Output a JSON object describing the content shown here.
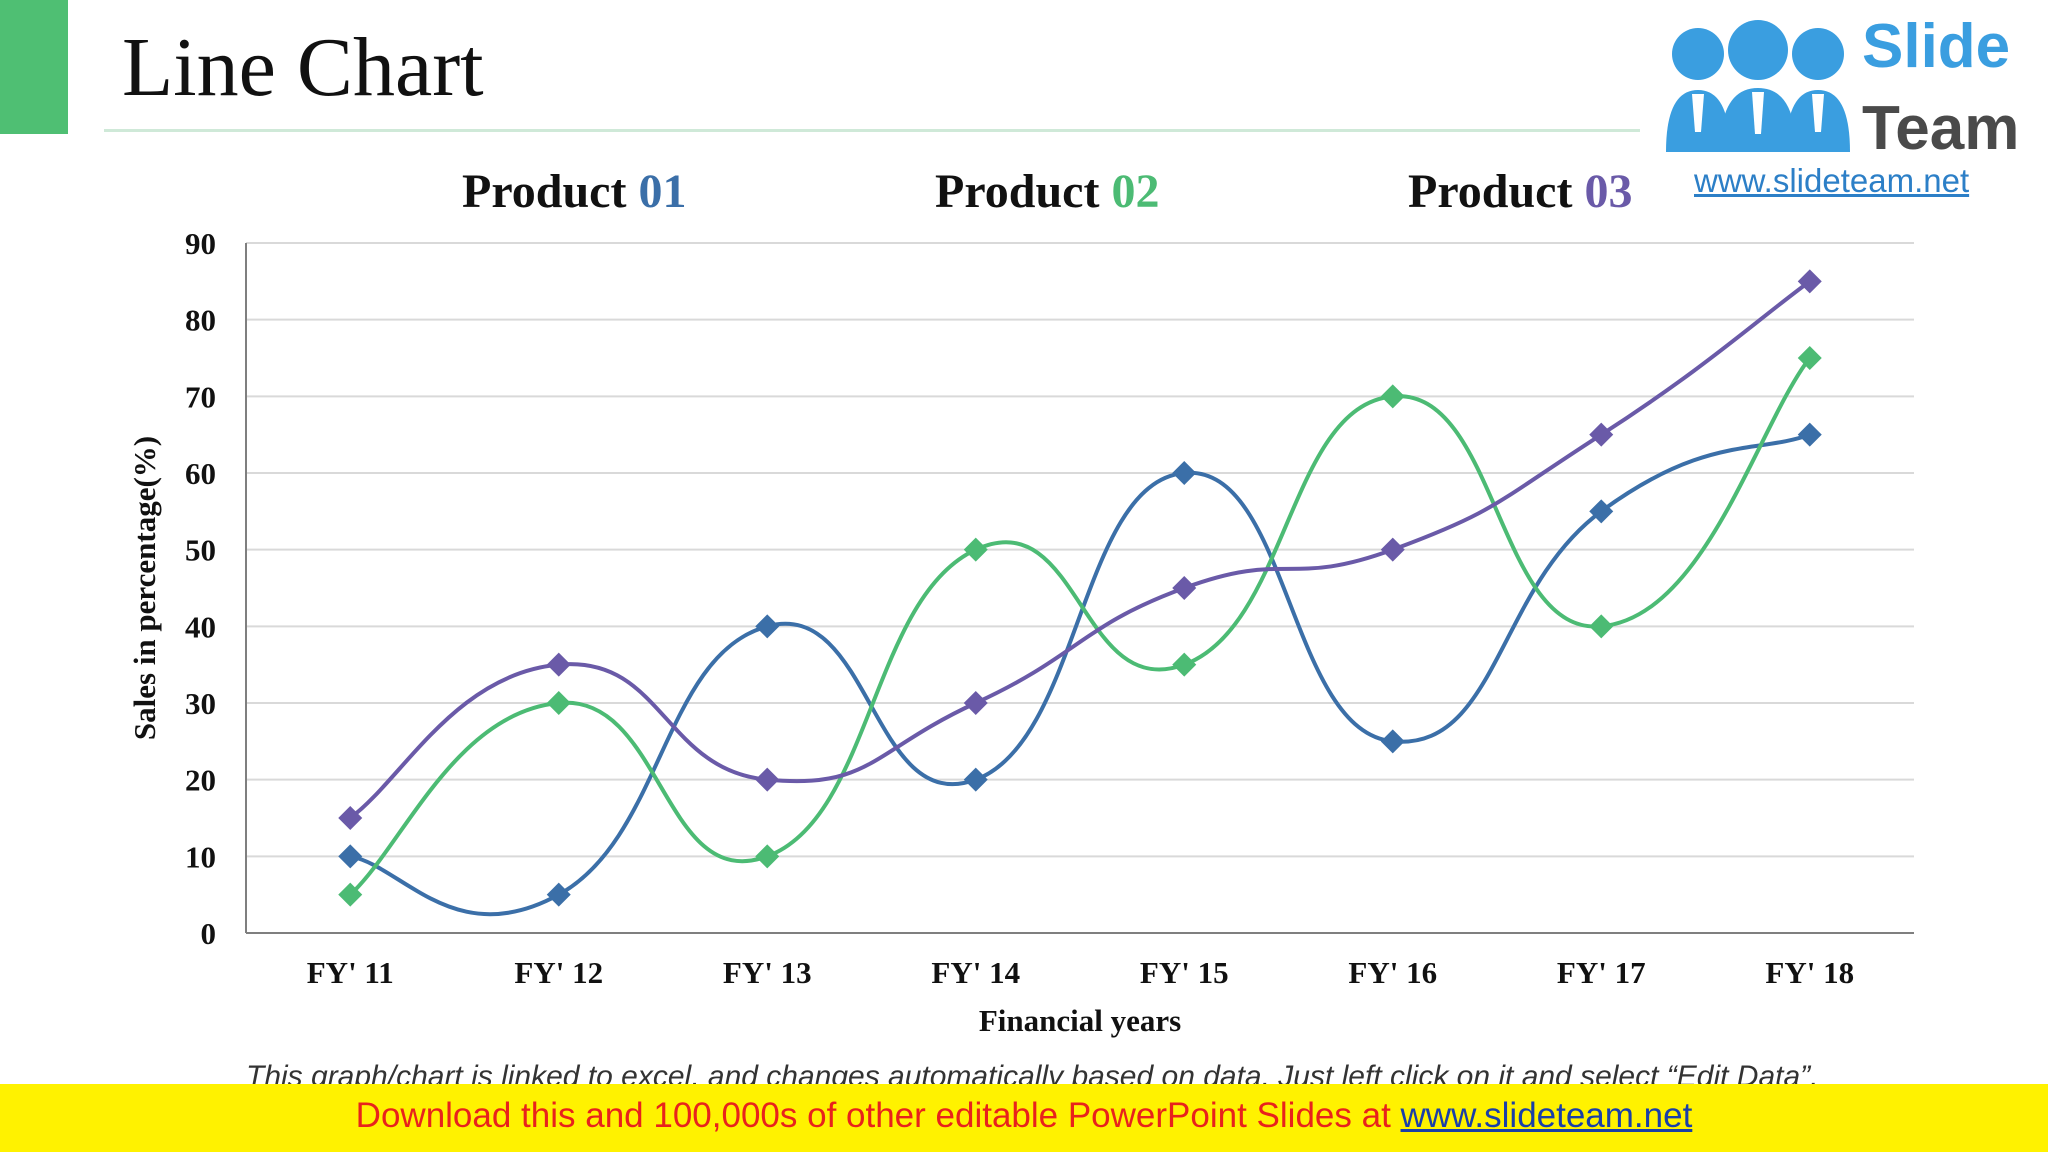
{
  "slide": {
    "title": "Line Chart",
    "note": "This graph/chart is linked to excel, and changes automatically based on data.  Just left click on it and select “Edit Data”."
  },
  "logo": {
    "word1": "Slide",
    "word2": "Team",
    "url": "www.slideteam.net"
  },
  "banner": {
    "text": "Download this and 100,000s of other editable PowerPoint Slides at ",
    "link": "www.slideteam.net"
  },
  "legend": [
    {
      "label": "Product ",
      "num": "01",
      "color": "#3b6fa8"
    },
    {
      "label": "Product ",
      "num": "02",
      "color": "#4cbb74"
    },
    {
      "label": "Product ",
      "num": "03",
      "color": "#6a5aa8"
    }
  ],
  "chart_data": {
    "type": "line",
    "title": "",
    "xlabel": "Financial years",
    "ylabel": "Sales in percentage(%)",
    "categories": [
      "FY' 11",
      "FY' 12",
      "FY' 13",
      "FY' 14",
      "FY' 15",
      "FY' 16",
      "FY' 17",
      "FY' 18"
    ],
    "ylim": [
      0,
      90
    ],
    "yticks": [
      0,
      10,
      20,
      30,
      40,
      50,
      60,
      70,
      80,
      90
    ],
    "grid": true,
    "legend_position": "top",
    "series": [
      {
        "name": "Product 01",
        "color": "#3b6fa8",
        "values": [
          10,
          5,
          40,
          20,
          60,
          25,
          55,
          65
        ]
      },
      {
        "name": "Product 02",
        "color": "#4cbb74",
        "values": [
          5,
          30,
          10,
          50,
          35,
          70,
          40,
          75
        ]
      },
      {
        "name": "Product 03",
        "color": "#6a5aa8",
        "values": [
          15,
          35,
          20,
          30,
          45,
          50,
          65,
          85
        ]
      }
    ]
  }
}
